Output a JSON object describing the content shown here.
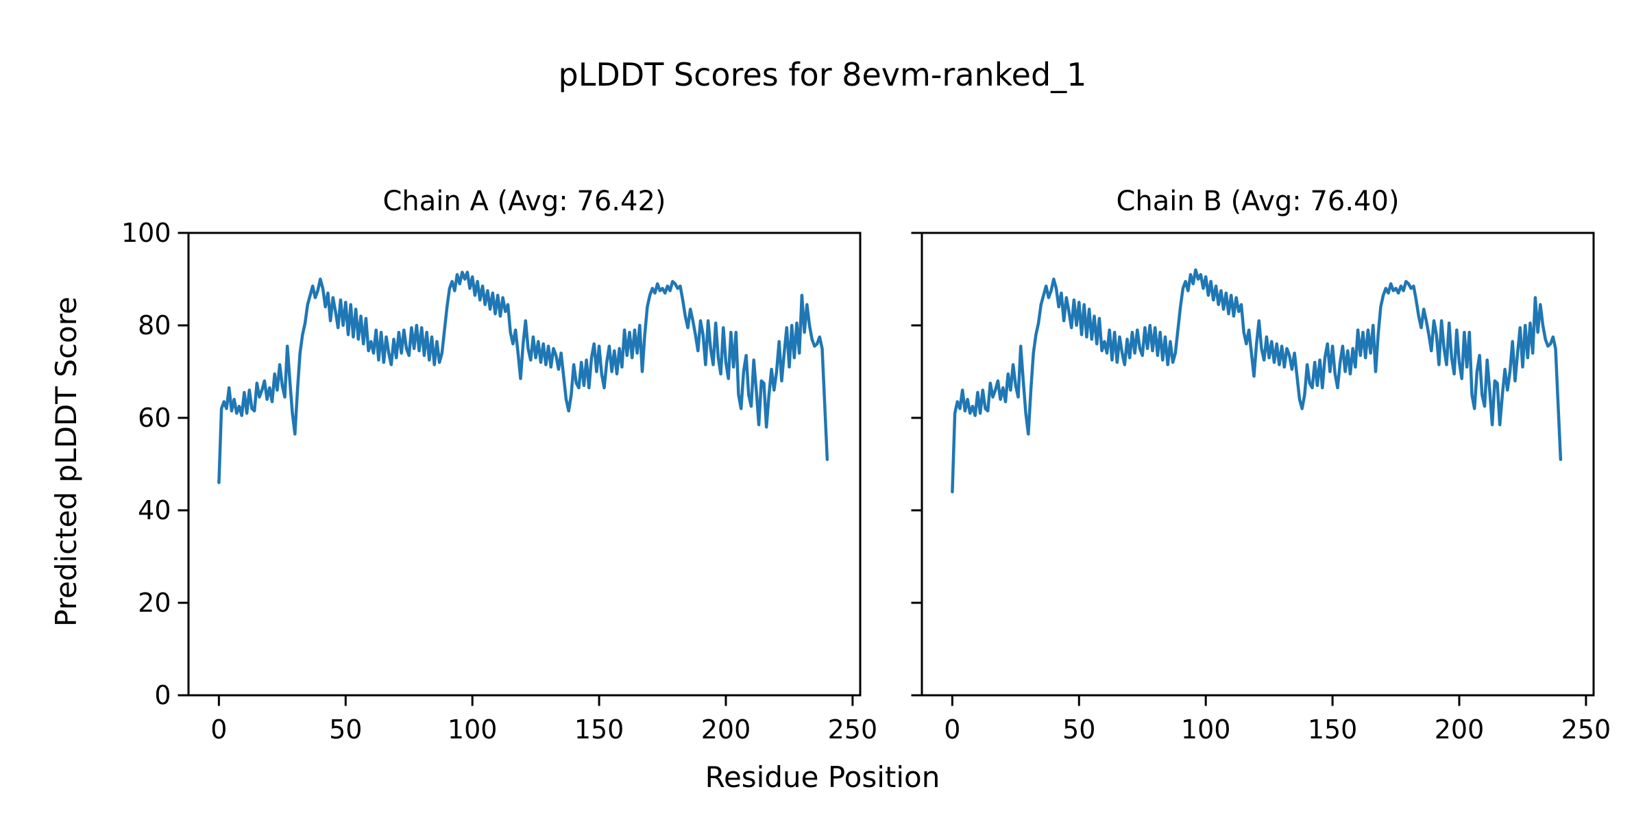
{
  "figure": {
    "title": "pLDDT Scores for 8evm-ranked_1",
    "xlabel": "Residue Position",
    "ylabel": "Predicted pLDDT Score"
  },
  "chart_data": [
    {
      "type": "line",
      "title": "Chain A (Avg: 76.42)",
      "chain": "A",
      "avg": 76.42,
      "xlabel": "Residue Position",
      "ylabel": "Predicted pLDDT Score",
      "xlim": [
        -12,
        253
      ],
      "ylim": [
        0,
        100
      ],
      "xticks": [
        0,
        50,
        100,
        150,
        200,
        250
      ],
      "yticks": [
        0,
        20,
        40,
        60,
        80,
        100
      ],
      "grid": false,
      "legend": "none",
      "line_color": "#1f77b4",
      "x_start": 0,
      "x_step": 1,
      "values": [
        46,
        62,
        63.5,
        62,
        66.5,
        61.5,
        64,
        61,
        62.5,
        60.5,
        65.5,
        61,
        66,
        62,
        61.5,
        67.5,
        64.5,
        66,
        68,
        64,
        66.5,
        63.5,
        69.5,
        66,
        71.5,
        67,
        64.5,
        75.5,
        68,
        61,
        56.5,
        66,
        74,
        78,
        80.5,
        84.5,
        86.5,
        88.5,
        86,
        87.5,
        90,
        88,
        84,
        87,
        81,
        86,
        83,
        79.5,
        85.5,
        80,
        85,
        78,
        84.5,
        77.5,
        83.5,
        77,
        82,
        76,
        81.5,
        74.5,
        76.5,
        74,
        79,
        72.5,
        78.5,
        72,
        77.5,
        74,
        71.5,
        77,
        73,
        78.5,
        74,
        79,
        75,
        73.5,
        79.5,
        75,
        80,
        74.5,
        79.5,
        73.5,
        78.5,
        72.5,
        77.5,
        71.5,
        76.5,
        72,
        74,
        79,
        84,
        88,
        89.5,
        87.5,
        91,
        89,
        91.5,
        90,
        91.5,
        88,
        90.5,
        86.5,
        89.5,
        85.5,
        88.5,
        84.5,
        87.5,
        83.5,
        87,
        82.5,
        86.5,
        82,
        86,
        83,
        84.5,
        78.5,
        76,
        79,
        74,
        68.5,
        76,
        81,
        75,
        72.5,
        77.5,
        73,
        76.5,
        72,
        76,
        71.5,
        75.5,
        71,
        75,
        73.5,
        70.5,
        74,
        69,
        64,
        61.5,
        65,
        71.5,
        67.5,
        66.5,
        72,
        67,
        72.5,
        66.5,
        73,
        76,
        70,
        75.5,
        69.5,
        66.5,
        72,
        75.5,
        70,
        74.5,
        69.5,
        75,
        71,
        79,
        73.5,
        78.5,
        73,
        79,
        74,
        80,
        70,
        78,
        84,
        86.5,
        88,
        87,
        89,
        87.5,
        88,
        87,
        88.5,
        87.5,
        89.5,
        89,
        88,
        88.5,
        85.5,
        82,
        79.5,
        83.5,
        81,
        78,
        74.5,
        81,
        78,
        71.5,
        81,
        75,
        71.5,
        80.5,
        73,
        69.5,
        79.5,
        72,
        68.5,
        78.5,
        71,
        78.5,
        65,
        62,
        70,
        73.5,
        65,
        62.5,
        72.5,
        66,
        58.5,
        68,
        67.5,
        58,
        65,
        70.5,
        66,
        70,
        76.5,
        68,
        74,
        79.5,
        71,
        80,
        73,
        80.5,
        74,
        86.5,
        78.5,
        84.5,
        80,
        77,
        75.5,
        76,
        77.5,
        75,
        63,
        51
      ]
    },
    {
      "type": "line",
      "title": "Chain B (Avg: 76.40)",
      "chain": "B",
      "avg": 76.4,
      "xlabel": "Residue Position",
      "ylabel": "Predicted pLDDT Score",
      "xlim": [
        -12,
        253
      ],
      "ylim": [
        0,
        100
      ],
      "xticks": [
        0,
        50,
        100,
        150,
        200,
        250
      ],
      "yticks": [
        0,
        20,
        40,
        60,
        80,
        100
      ],
      "grid": false,
      "legend": "none",
      "line_color": "#1f77b4",
      "x_start": 0,
      "x_step": 1,
      "values": [
        44,
        61,
        63.5,
        62,
        66,
        61.5,
        64,
        61,
        62.5,
        60.5,
        65.5,
        61,
        66,
        62,
        61.5,
        67.5,
        64.5,
        66,
        68,
        64,
        66.5,
        63.5,
        69.5,
        66,
        71.5,
        67,
        64.5,
        75.5,
        68,
        61,
        56.5,
        66,
        74,
        78,
        80.5,
        84.5,
        86.5,
        88.5,
        86,
        87.5,
        90,
        88,
        84,
        87,
        81,
        86,
        83,
        79.5,
        85.5,
        80,
        85,
        78,
        84.5,
        77.5,
        83.5,
        77,
        82,
        76,
        81.5,
        74.5,
        76.5,
        74,
        79,
        72.5,
        78.5,
        72,
        77.5,
        74,
        71.5,
        77,
        73,
        78.5,
        74,
        79,
        75,
        73.5,
        79.5,
        75,
        80,
        74.5,
        79.5,
        73.5,
        78.5,
        72.5,
        77.5,
        71.5,
        76.5,
        72,
        74,
        79,
        84,
        88,
        89.5,
        87.5,
        91,
        89,
        92,
        90,
        91,
        88,
        90.5,
        86.5,
        89.5,
        85.5,
        88.5,
        84.5,
        87.5,
        83.5,
        87,
        82.5,
        86.5,
        82,
        86,
        83,
        84.5,
        78.5,
        76,
        79,
        74,
        69,
        76,
        81,
        75,
        72.5,
        77.5,
        73,
        76.5,
        72,
        76,
        71.5,
        75.5,
        71,
        75,
        73.5,
        70.5,
        74,
        69,
        64,
        62,
        65,
        71.5,
        67.5,
        66.5,
        72,
        67,
        72.5,
        66.5,
        73,
        76,
        70,
        75.5,
        69.5,
        66.5,
        72,
        75.5,
        70,
        74.5,
        69.5,
        75,
        71,
        79,
        73.5,
        78.5,
        73,
        79,
        74,
        80,
        70,
        78,
        84,
        86.5,
        88,
        87,
        89,
        87.5,
        88,
        87,
        88.5,
        87.5,
        89.5,
        89,
        88,
        88.5,
        85.5,
        82,
        79.5,
        83.5,
        81,
        78,
        74.5,
        81,
        78,
        71.5,
        81,
        75,
        71.5,
        80.5,
        73,
        69.5,
        79,
        72,
        68.5,
        78.5,
        71,
        78.5,
        65,
        62,
        70,
        73.5,
        65,
        62.5,
        72.5,
        66,
        58.5,
        68,
        67.5,
        58.5,
        65,
        70.5,
        66,
        70,
        76.5,
        68,
        74,
        79.5,
        71,
        80,
        73,
        80.5,
        74,
        86,
        78.5,
        84.5,
        80,
        77,
        75.5,
        76,
        77.5,
        75,
        63,
        51
      ]
    }
  ],
  "colors": {
    "line": "#1f77b4",
    "axes": "#000000",
    "background": "#ffffff"
  }
}
